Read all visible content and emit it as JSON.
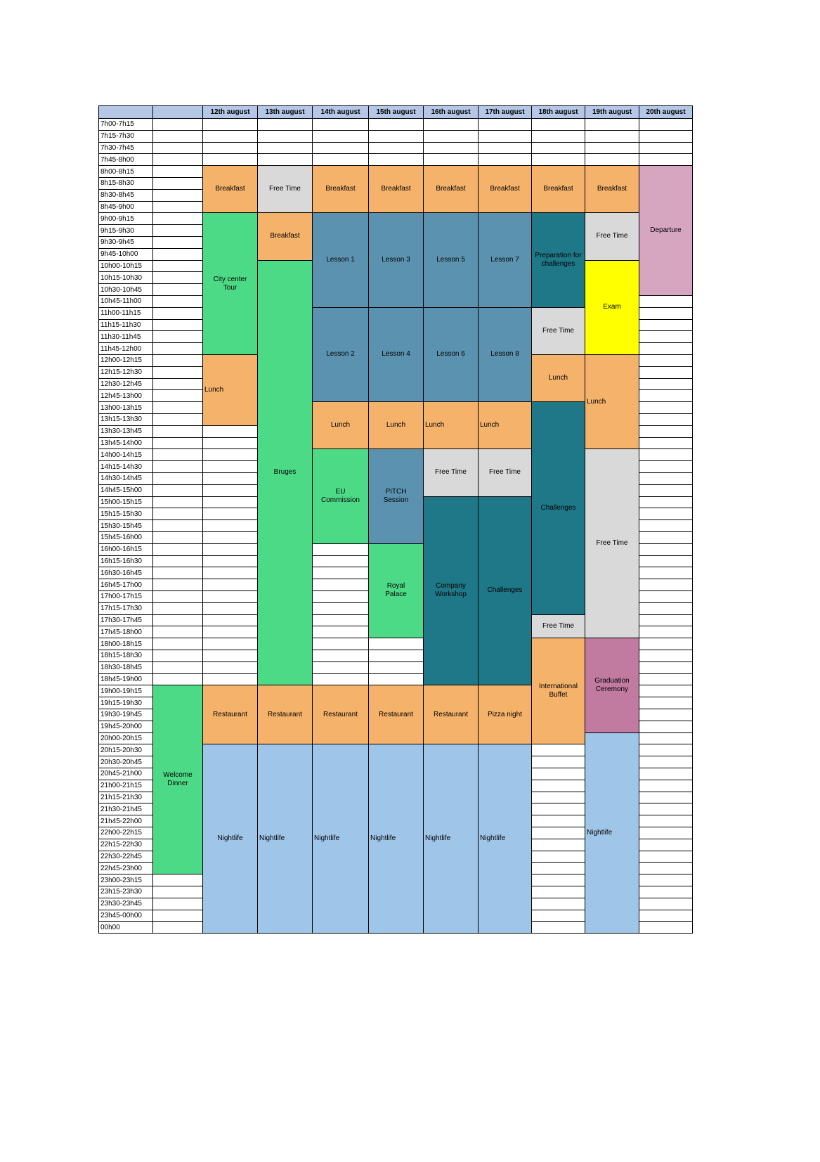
{
  "columns": [
    "",
    "",
    "12th august",
    "13th august",
    "14th august",
    "15th august",
    "16th august",
    "17th august",
    "18th august",
    "19th august",
    "20th august"
  ],
  "times": [
    "7h00-7h15",
    "7h15-7h30",
    "7h30-7h45",
    "7h45-8h00",
    "8h00-8h15",
    "8h15-8h30",
    "8h30-8h45",
    "8h45-9h00",
    "9h00-9h15",
    "9h15-9h30",
    "9h30-9h45",
    "9h45-10h00",
    "10h00-10h15",
    "10h15-10h30",
    "10h30-10h45",
    "10h45-11h00",
    "11h00-11h15",
    "11h15-11h30",
    "11h30-11h45",
    "11h45-12h00",
    "12h00-12h15",
    "12h15-12h30",
    "12h30-12h45",
    "12h45-13h00",
    "13h00-13h15",
    "13h15-13h30",
    "13h30-13h45",
    "13h45-14h00",
    "14h00-14h15",
    "14h15-14h30",
    "14h30-14h45",
    "14h45-15h00",
    "15h00-15h15",
    "15h15-15h30",
    "15h30-15h45",
    "15h45-16h00",
    "16h00-16h15",
    "16h15-16h30",
    "16h30-16h45",
    "16h45-17h00",
    "17h00-17h15",
    "17h15-17h30",
    "17h30-17h45",
    "17h45-18h00",
    "18h00-18h15",
    "18h15-18h30",
    "18h30-18h45",
    "18h45-19h00",
    "19h00-19h15",
    "19h15-19h30",
    "19h30-19h45",
    "19h45-20h00",
    "20h00-20h15",
    "20h15-20h30",
    "20h30-20h45",
    "20h45-21h00",
    "21h00-21h15",
    "21h15-21h30",
    "21h30-21h45",
    "21h45-22h00",
    "22h00-22h15",
    "22h15-22h30",
    "22h30-22h45",
    "22h45-23h00",
    "23h00-23h15",
    "23h15-23h30",
    "23h30-23h45",
    "23h45-00h00",
    "00h00"
  ],
  "colors": {
    "header": "#b4c7e7",
    "meal": "#f4b26b",
    "free": "#d9d9d9",
    "green": "#4dda87",
    "lesson": "#5b92b0",
    "teal": "#1f7887",
    "yellow": "#ffff00",
    "pink": "#d6a5c0",
    "mauve": "#c27ba0",
    "night": "#9fc5e8"
  },
  "events": [
    {
      "label": "Welcome\nDinner",
      "col": 1,
      "start": 48,
      "end": 64,
      "color": "green"
    },
    {
      "label": "Breakfast",
      "col": 2,
      "start": 4,
      "end": 8,
      "color": "meal"
    },
    {
      "label": "City center\nTour",
      "col": 2,
      "start": 8,
      "end": 20,
      "color": "green"
    },
    {
      "label": "Lunch",
      "col": 2,
      "start": 20,
      "end": 26,
      "color": "meal",
      "align": "left"
    },
    {
      "label": "Restaurant",
      "col": 2,
      "start": 48,
      "end": 53,
      "color": "meal"
    },
    {
      "label": "Nightlife",
      "col": 2,
      "start": 53,
      "end": 69,
      "color": "night"
    },
    {
      "label": "Free Time",
      "col": 3,
      "start": 4,
      "end": 8,
      "color": "free"
    },
    {
      "label": "Breakfast",
      "col": 3,
      "start": 8,
      "end": 12,
      "color": "meal"
    },
    {
      "label": "Bruges",
      "col": 3,
      "start": 12,
      "end": 48,
      "color": "green"
    },
    {
      "label": "Restaurant",
      "col": 3,
      "start": 48,
      "end": 53,
      "color": "meal"
    },
    {
      "label": "Nightlife",
      "col": 3,
      "start": 53,
      "end": 69,
      "color": "night",
      "align": "left"
    },
    {
      "label": "Breakfast",
      "col": 4,
      "start": 4,
      "end": 8,
      "color": "meal"
    },
    {
      "label": "Lesson 1",
      "col": 4,
      "start": 8,
      "end": 16,
      "color": "lesson"
    },
    {
      "label": "Lesson 2",
      "col": 4,
      "start": 16,
      "end": 24,
      "color": "lesson"
    },
    {
      "label": "Lunch",
      "col": 4,
      "start": 24,
      "end": 28,
      "color": "meal"
    },
    {
      "label": "EU\nCommission",
      "col": 4,
      "start": 28,
      "end": 36,
      "color": "green"
    },
    {
      "label": "Restaurant",
      "col": 4,
      "start": 48,
      "end": 53,
      "color": "meal"
    },
    {
      "label": "Nightlife",
      "col": 4,
      "start": 53,
      "end": 69,
      "color": "night",
      "align": "left"
    },
    {
      "label": "Breakfast",
      "col": 5,
      "start": 4,
      "end": 8,
      "color": "meal"
    },
    {
      "label": "Lesson 3",
      "col": 5,
      "start": 8,
      "end": 16,
      "color": "lesson"
    },
    {
      "label": "Lesson 4",
      "col": 5,
      "start": 16,
      "end": 24,
      "color": "lesson"
    },
    {
      "label": "Lunch",
      "col": 5,
      "start": 24,
      "end": 28,
      "color": "meal"
    },
    {
      "label": "PITCH\nSession",
      "col": 5,
      "start": 28,
      "end": 36,
      "color": "lesson"
    },
    {
      "label": "Royal\nPalace",
      "col": 5,
      "start": 36,
      "end": 44,
      "color": "green"
    },
    {
      "label": "Restaurant",
      "col": 5,
      "start": 48,
      "end": 53,
      "color": "meal"
    },
    {
      "label": "Nightlife",
      "col": 5,
      "start": 53,
      "end": 69,
      "color": "night",
      "align": "left"
    },
    {
      "label": "Breakfast",
      "col": 6,
      "start": 4,
      "end": 8,
      "color": "meal"
    },
    {
      "label": "Lesson 5",
      "col": 6,
      "start": 8,
      "end": 16,
      "color": "lesson"
    },
    {
      "label": "Lesson 6",
      "col": 6,
      "start": 16,
      "end": 24,
      "color": "lesson"
    },
    {
      "label": "Lunch",
      "col": 6,
      "start": 24,
      "end": 28,
      "color": "meal",
      "align": "left"
    },
    {
      "label": "Free Time",
      "col": 6,
      "start": 28,
      "end": 32,
      "color": "free"
    },
    {
      "label": "Company\nWorkshop",
      "col": 6,
      "start": 32,
      "end": 48,
      "color": "teal"
    },
    {
      "label": "Restaurant",
      "col": 6,
      "start": 48,
      "end": 53,
      "color": "meal"
    },
    {
      "label": "Nightlife",
      "col": 6,
      "start": 53,
      "end": 69,
      "color": "night",
      "align": "left"
    },
    {
      "label": "Breakfast",
      "col": 7,
      "start": 4,
      "end": 8,
      "color": "meal"
    },
    {
      "label": "Lesson 7",
      "col": 7,
      "start": 8,
      "end": 16,
      "color": "lesson"
    },
    {
      "label": "Lesson 8",
      "col": 7,
      "start": 16,
      "end": 24,
      "color": "lesson"
    },
    {
      "label": "Lunch",
      "col": 7,
      "start": 24,
      "end": 28,
      "color": "meal",
      "align": "left"
    },
    {
      "label": "Free Time",
      "col": 7,
      "start": 28,
      "end": 32,
      "color": "free"
    },
    {
      "label": "Challenges",
      "col": 7,
      "start": 32,
      "end": 48,
      "color": "teal"
    },
    {
      "label": "Pizza night",
      "col": 7,
      "start": 48,
      "end": 53,
      "color": "meal"
    },
    {
      "label": "Nightlife",
      "col": 7,
      "start": 53,
      "end": 69,
      "color": "night",
      "align": "left"
    },
    {
      "label": "Breakfast",
      "col": 8,
      "start": 4,
      "end": 8,
      "color": "meal"
    },
    {
      "label": "Preparation for\nchallenges",
      "col": 8,
      "start": 8,
      "end": 16,
      "color": "teal"
    },
    {
      "label": "Free Time",
      "col": 8,
      "start": 16,
      "end": 20,
      "color": "free"
    },
    {
      "label": "Lunch",
      "col": 8,
      "start": 20,
      "end": 24,
      "color": "meal"
    },
    {
      "label": "Challenges",
      "col": 8,
      "start": 24,
      "end": 42,
      "color": "teal"
    },
    {
      "label": "Free Time",
      "col": 8,
      "start": 42,
      "end": 44,
      "color": "free"
    },
    {
      "label": "International\nBuffet",
      "col": 8,
      "start": 44,
      "end": 53,
      "color": "meal"
    },
    {
      "label": "Breakfast",
      "col": 9,
      "start": 4,
      "end": 8,
      "color": "meal"
    },
    {
      "label": "Free Time",
      "col": 9,
      "start": 8,
      "end": 12,
      "color": "free"
    },
    {
      "label": "Exam",
      "col": 9,
      "start": 12,
      "end": 20,
      "color": "yellow"
    },
    {
      "label": "Lunch",
      "col": 9,
      "start": 20,
      "end": 28,
      "color": "meal",
      "align": "left"
    },
    {
      "label": "Free Time",
      "col": 9,
      "start": 28,
      "end": 44,
      "color": "free"
    },
    {
      "label": "Graduation\nCeremony",
      "col": 9,
      "start": 44,
      "end": 52,
      "color": "mauve"
    },
    {
      "label": "Nightlife",
      "col": 9,
      "start": 52,
      "end": 69,
      "color": "night",
      "align": "left"
    },
    {
      "label": "Departure",
      "col": 10,
      "start": 4,
      "end": 15,
      "color": "pink"
    }
  ]
}
